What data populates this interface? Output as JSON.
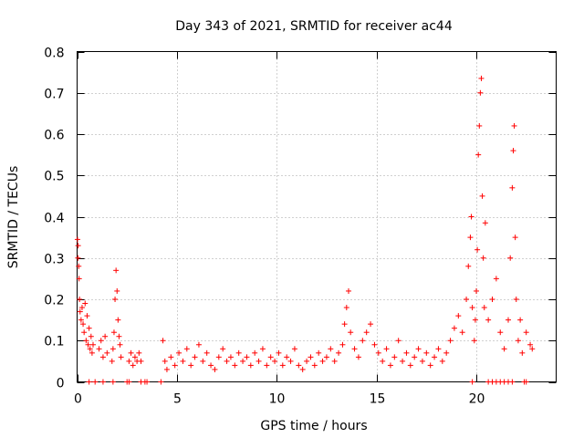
{
  "chart_data": {
    "type": "scatter",
    "title": "Day 343 of 2021, SRMTID for receiver ac44",
    "xlabel": "GPS time / hours",
    "ylabel": "SRMTID / TECUs",
    "xlim": [
      0,
      24
    ],
    "ylim": [
      0,
      0.8
    ],
    "xticks": [
      0,
      5,
      10,
      15,
      20
    ],
    "xtick_labels": [
      "0",
      "5",
      "10",
      "15",
      "20"
    ],
    "yticks": [
      0,
      0.1,
      0.2,
      0.3,
      0.4,
      0.5,
      0.6,
      0.7,
      0.8
    ],
    "ytick_labels": [
      "0",
      "0.1",
      "0.2",
      "0.3",
      "0.4",
      "0.5",
      "0.6",
      "0.7",
      "0.8"
    ],
    "grid": true,
    "marker": "+",
    "color": "#ff0000",
    "series": [
      {
        "name": "SRMTID",
        "points": [
          [
            0.02,
            0.345
          ],
          [
            0.04,
            0.3
          ],
          [
            0.05,
            0.33
          ],
          [
            0.08,
            0.28
          ],
          [
            0.1,
            0.25
          ],
          [
            0.12,
            0.2
          ],
          [
            0.15,
            0.17
          ],
          [
            0.2,
            0.15
          ],
          [
            0.25,
            0.18
          ],
          [
            0.3,
            0.14
          ],
          [
            0.35,
            0.12
          ],
          [
            0.4,
            0.19
          ],
          [
            0.45,
            0.1
          ],
          [
            0.5,
            0.16
          ],
          [
            0.55,
            0.09
          ],
          [
            0.6,
            0.13
          ],
          [
            0.65,
            0.08
          ],
          [
            0.7,
            0.11
          ],
          [
            0.75,
            0.07
          ],
          [
            0.8,
            0.09
          ],
          [
            1.1,
            0.08
          ],
          [
            1.2,
            0.1
          ],
          [
            1.3,
            0.06
          ],
          [
            1.4,
            0.11
          ],
          [
            1.5,
            0.07
          ],
          [
            1.75,
            0.05
          ],
          [
            1.8,
            0.08
          ],
          [
            1.85,
            0.12
          ],
          [
            1.9,
            0.2
          ],
          [
            1.95,
            0.27
          ],
          [
            2.0,
            0.22
          ],
          [
            2.05,
            0.15
          ],
          [
            2.1,
            0.11
          ],
          [
            2.15,
            0.09
          ],
          [
            2.2,
            0.06
          ],
          [
            2.6,
            0.05
          ],
          [
            2.7,
            0.07
          ],
          [
            2.8,
            0.04
          ],
          [
            2.9,
            0.06
          ],
          [
            3.0,
            0.05
          ],
          [
            3.1,
            0.07
          ],
          [
            3.2,
            0.05
          ],
          [
            4.3,
            0.1
          ],
          [
            4.4,
            0.05
          ],
          [
            4.5,
            0.03
          ],
          [
            4.7,
            0.06
          ],
          [
            4.9,
            0.04
          ],
          [
            5.1,
            0.07
          ],
          [
            5.3,
            0.05
          ],
          [
            5.5,
            0.08
          ],
          [
            5.7,
            0.04
          ],
          [
            5.9,
            0.06
          ],
          [
            6.1,
            0.09
          ],
          [
            6.3,
            0.05
          ],
          [
            6.5,
            0.07
          ],
          [
            6.7,
            0.04
          ],
          [
            6.9,
            0.03
          ],
          [
            7.1,
            0.06
          ],
          [
            7.3,
            0.08
          ],
          [
            7.5,
            0.05
          ],
          [
            7.7,
            0.06
          ],
          [
            7.9,
            0.04
          ],
          [
            8.1,
            0.07
          ],
          [
            8.3,
            0.05
          ],
          [
            8.5,
            0.06
          ],
          [
            8.7,
            0.04
          ],
          [
            8.9,
            0.07
          ],
          [
            9.1,
            0.05
          ],
          [
            9.3,
            0.08
          ],
          [
            9.5,
            0.04
          ],
          [
            9.7,
            0.06
          ],
          [
            9.9,
            0.05
          ],
          [
            10.1,
            0.07
          ],
          [
            10.3,
            0.04
          ],
          [
            10.5,
            0.06
          ],
          [
            10.7,
            0.05
          ],
          [
            10.9,
            0.08
          ],
          [
            11.1,
            0.04
          ],
          [
            11.3,
            0.03
          ],
          [
            11.5,
            0.05
          ],
          [
            11.7,
            0.06
          ],
          [
            11.9,
            0.04
          ],
          [
            12.1,
            0.07
          ],
          [
            12.3,
            0.05
          ],
          [
            12.5,
            0.06
          ],
          [
            12.7,
            0.08
          ],
          [
            12.9,
            0.05
          ],
          [
            13.1,
            0.07
          ],
          [
            13.3,
            0.09
          ],
          [
            13.4,
            0.14
          ],
          [
            13.5,
            0.18
          ],
          [
            13.6,
            0.22
          ],
          [
            13.7,
            0.12
          ],
          [
            13.9,
            0.08
          ],
          [
            14.1,
            0.06
          ],
          [
            14.3,
            0.1
          ],
          [
            14.5,
            0.12
          ],
          [
            14.7,
            0.14
          ],
          [
            14.9,
            0.09
          ],
          [
            15.1,
            0.07
          ],
          [
            15.3,
            0.05
          ],
          [
            15.5,
            0.08
          ],
          [
            15.7,
            0.04
          ],
          [
            15.9,
            0.06
          ],
          [
            16.1,
            0.1
          ],
          [
            16.3,
            0.05
          ],
          [
            16.5,
            0.07
          ],
          [
            16.7,
            0.04
          ],
          [
            16.9,
            0.06
          ],
          [
            17.1,
            0.08
          ],
          [
            17.3,
            0.05
          ],
          [
            17.5,
            0.07
          ],
          [
            17.7,
            0.04
          ],
          [
            17.9,
            0.06
          ],
          [
            18.1,
            0.08
          ],
          [
            18.3,
            0.05
          ],
          [
            18.5,
            0.07
          ],
          [
            18.7,
            0.1
          ],
          [
            18.9,
            0.13
          ],
          [
            19.1,
            0.16
          ],
          [
            19.3,
            0.12
          ],
          [
            19.5,
            0.2
          ],
          [
            19.6,
            0.28
          ],
          [
            19.7,
            0.35
          ],
          [
            19.75,
            0.4
          ],
          [
            19.8,
            0.18
          ],
          [
            19.9,
            0.1
          ],
          [
            19.95,
            0.15
          ],
          [
            20.0,
            0.22
          ],
          [
            20.05,
            0.32
          ],
          [
            20.1,
            0.55
          ],
          [
            20.15,
            0.62
          ],
          [
            20.2,
            0.7
          ],
          [
            20.25,
            0.735
          ],
          [
            20.3,
            0.45
          ],
          [
            20.35,
            0.3
          ],
          [
            20.4,
            0.18
          ],
          [
            20.45,
            0.385
          ],
          [
            20.6,
            0.15
          ],
          [
            20.8,
            0.2
          ],
          [
            21.0,
            0.25
          ],
          [
            21.2,
            0.12
          ],
          [
            21.4,
            0.08
          ],
          [
            21.6,
            0.15
          ],
          [
            21.7,
            0.3
          ],
          [
            21.8,
            0.47
          ],
          [
            21.85,
            0.56
          ],
          [
            21.9,
            0.62
          ],
          [
            21.95,
            0.35
          ],
          [
            22.0,
            0.2
          ],
          [
            22.1,
            0.1
          ],
          [
            22.2,
            0.15
          ],
          [
            22.3,
            0.07
          ],
          [
            22.5,
            0.12
          ],
          [
            22.7,
            0.09
          ],
          [
            22.8,
            0.08
          ]
        ]
      }
    ],
    "zero_points_x": [
      0.6,
      0.9,
      1.3,
      1.8,
      2.5,
      2.6,
      3.2,
      3.4,
      3.5,
      4.2,
      19.8,
      20.6,
      20.8,
      21.0,
      21.2,
      21.4,
      21.6,
      21.8,
      22.4,
      22.5
    ]
  }
}
